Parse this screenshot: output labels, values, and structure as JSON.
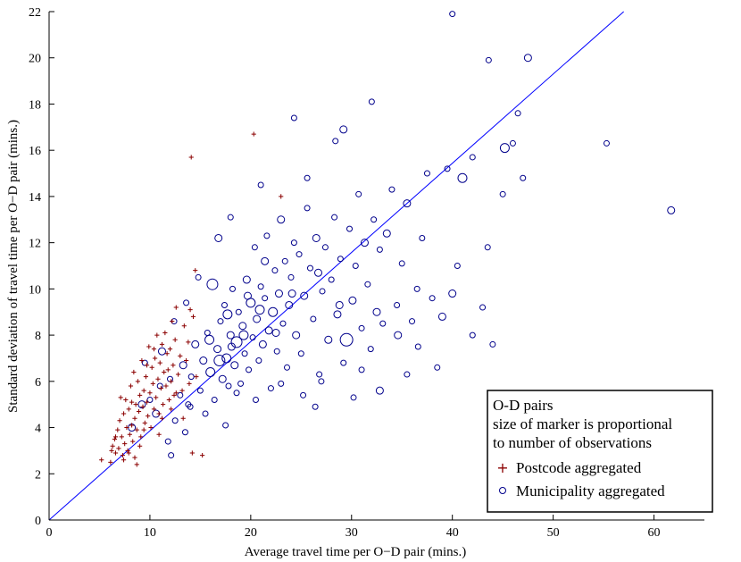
{
  "chart_data": {
    "type": "scatter",
    "title": "",
    "xlabel": "Average travel time per O−D pair (mins.)",
    "ylabel": "Standard deviation of travel time per O−D pair (mins.)",
    "xlim": [
      0,
      65
    ],
    "ylim": [
      0,
      22
    ],
    "xticks": [
      0,
      10,
      20,
      30,
      40,
      50,
      60
    ],
    "yticks": [
      0,
      2,
      4,
      6,
      8,
      10,
      12,
      14,
      16,
      18,
      20,
      22
    ],
    "grid": false,
    "legend": {
      "placement": "bottom-right",
      "lines": [
        "O-D pairs",
        "size of marker is proportional",
        "to number of observations"
      ],
      "entries": [
        {
          "label": "Postcode aggregated",
          "marker": "+",
          "color": "#8b0000"
        },
        {
          "label": "Municipality aggregated",
          "marker": "o",
          "color": "#00008b"
        }
      ]
    },
    "reference_line": {
      "x": [
        0,
        57
      ],
      "y": [
        0,
        22
      ],
      "color": "#0000ff"
    },
    "series": [
      {
        "name": "Postcode aggregated",
        "marker": "+",
        "color": "#8b0000",
        "points": [
          [
            5.2,
            2.6
          ],
          [
            6.1,
            2.5
          ],
          [
            6.3,
            3.2
          ],
          [
            6.5,
            3.5
          ],
          [
            6.6,
            2.9
          ],
          [
            6.8,
            3.9
          ],
          [
            6.9,
            3.1
          ],
          [
            7.0,
            4.3
          ],
          [
            7.1,
            5.3
          ],
          [
            7.2,
            3.6
          ],
          [
            7.3,
            2.8
          ],
          [
            7.4,
            4.6
          ],
          [
            7.5,
            3.3
          ],
          [
            7.6,
            5.2
          ],
          [
            7.7,
            4.0
          ],
          [
            7.8,
            3.0
          ],
          [
            7.9,
            4.8
          ],
          [
            8.0,
            3.7
          ],
          [
            8.1,
            5.8
          ],
          [
            8.2,
            4.1
          ],
          [
            8.3,
            3.4
          ],
          [
            8.4,
            6.4
          ],
          [
            8.5,
            4.4
          ],
          [
            8.6,
            5.0
          ],
          [
            8.7,
            3.9
          ],
          [
            8.8,
            6.0
          ],
          [
            8.9,
            4.7
          ],
          [
            9.0,
            5.4
          ],
          [
            9.1,
            3.6
          ],
          [
            9.2,
            6.9
          ],
          [
            9.3,
            4.9
          ],
          [
            9.4,
            5.6
          ],
          [
            9.5,
            4.2
          ],
          [
            9.6,
            6.2
          ],
          [
            9.7,
            5.1
          ],
          [
            9.8,
            4.5
          ],
          [
            9.9,
            7.5
          ],
          [
            10.0,
            5.5
          ],
          [
            10.1,
            4.0
          ],
          [
            10.2,
            6.6
          ],
          [
            10.3,
            5.9
          ],
          [
            10.4,
            4.8
          ],
          [
            10.5,
            7.0
          ],
          [
            10.6,
            5.3
          ],
          [
            10.7,
            8.0
          ],
          [
            10.8,
            6.1
          ],
          [
            10.9,
            4.6
          ],
          [
            11.0,
            6.8
          ],
          [
            11.1,
            5.7
          ],
          [
            11.2,
            7.6
          ],
          [
            11.3,
            5.0
          ],
          [
            11.4,
            6.4
          ],
          [
            11.5,
            8.1
          ],
          [
            11.6,
            5.8
          ],
          [
            11.7,
            7.2
          ],
          [
            11.8,
            6.5
          ],
          [
            11.9,
            5.2
          ],
          [
            12.0,
            7.4
          ],
          [
            12.1,
            6.0
          ],
          [
            12.2,
            8.6
          ],
          [
            12.3,
            6.7
          ],
          [
            12.4,
            5.4
          ],
          [
            12.5,
            7.8
          ],
          [
            12.6,
            9.2
          ],
          [
            12.8,
            6.3
          ],
          [
            13.0,
            7.1
          ],
          [
            13.2,
            5.6
          ],
          [
            13.4,
            8.4
          ],
          [
            13.6,
            6.9
          ],
          [
            13.8,
            7.7
          ],
          [
            14.0,
            9.1
          ],
          [
            14.1,
            15.7
          ],
          [
            14.3,
            8.8
          ],
          [
            14.5,
            10.8
          ],
          [
            15.2,
            2.8
          ],
          [
            14.2,
            2.9
          ],
          [
            20.3,
            16.7
          ],
          [
            23.0,
            14.0
          ],
          [
            8.5,
            2.7
          ],
          [
            9.0,
            3.2
          ],
          [
            7.4,
            2.6
          ],
          [
            8.2,
            5.1
          ],
          [
            9.7,
            6.7
          ],
          [
            10.4,
            7.4
          ],
          [
            11.2,
            4.4
          ],
          [
            12.1,
            4.8
          ],
          [
            13.3,
            4.4
          ],
          [
            6.6,
            3.6
          ],
          [
            7.9,
            2.9
          ],
          [
            9.4,
            3.9
          ],
          [
            10.9,
            3.7
          ],
          [
            12.6,
            5.5
          ],
          [
            13.9,
            5.9
          ],
          [
            14.6,
            6.2
          ],
          [
            8.7,
            2.4
          ],
          [
            6.2,
            3.0
          ]
        ]
      },
      {
        "name": "Municipality aggregated",
        "marker": "o",
        "color": "#00008b",
        "points": [
          [
            8.2,
            4.0,
            4
          ],
          [
            9.2,
            5.0,
            4
          ],
          [
            9.5,
            6.8,
            3
          ],
          [
            10.0,
            5.2,
            3
          ],
          [
            10.6,
            4.6,
            4
          ],
          [
            11.0,
            5.8,
            3
          ],
          [
            11.2,
            7.3,
            4
          ],
          [
            12.0,
            6.1,
            3
          ],
          [
            12.5,
            4.3,
            3
          ],
          [
            13.0,
            5.4,
            3
          ],
          [
            13.3,
            6.7,
            4
          ],
          [
            13.8,
            5.0,
            3
          ],
          [
            14.1,
            6.2,
            3
          ],
          [
            14.5,
            7.6,
            4
          ],
          [
            15.0,
            5.6,
            3
          ],
          [
            15.3,
            6.9,
            4
          ],
          [
            15.7,
            8.1,
            3
          ],
          [
            16.0,
            6.4,
            5
          ],
          [
            16.2,
            10.2,
            6
          ],
          [
            16.4,
            5.2,
            3
          ],
          [
            16.7,
            7.4,
            4
          ],
          [
            17.0,
            8.6,
            3
          ],
          [
            17.2,
            6.1,
            4
          ],
          [
            17.4,
            9.3,
            3
          ],
          [
            17.6,
            7.0,
            5
          ],
          [
            17.8,
            5.8,
            3
          ],
          [
            18.0,
            8.0,
            4
          ],
          [
            18.2,
            10.0,
            3
          ],
          [
            18.4,
            6.7,
            4
          ],
          [
            18.6,
            7.7,
            6
          ],
          [
            18.8,
            9.0,
            3
          ],
          [
            19.0,
            5.9,
            3
          ],
          [
            19.2,
            8.4,
            4
          ],
          [
            19.4,
            7.2,
            3
          ],
          [
            19.6,
            10.4,
            4
          ],
          [
            19.8,
            6.5,
            3
          ],
          [
            20.0,
            9.4,
            5
          ],
          [
            20.2,
            7.9,
            3
          ],
          [
            20.4,
            11.8,
            3
          ],
          [
            20.6,
            8.7,
            4
          ],
          [
            20.8,
            6.9,
            3
          ],
          [
            21.0,
            10.1,
            3
          ],
          [
            21.2,
            7.6,
            4
          ],
          [
            21.4,
            9.6,
            3
          ],
          [
            21.6,
            12.3,
            3
          ],
          [
            21.8,
            8.2,
            4
          ],
          [
            22.0,
            5.7,
            3
          ],
          [
            22.2,
            9.0,
            5
          ],
          [
            22.4,
            10.8,
            3
          ],
          [
            22.6,
            7.3,
            3
          ],
          [
            22.8,
            9.8,
            4
          ],
          [
            23.0,
            13.0,
            4
          ],
          [
            23.2,
            8.5,
            3
          ],
          [
            23.4,
            11.2,
            3
          ],
          [
            23.6,
            6.6,
            3
          ],
          [
            23.8,
            9.3,
            4
          ],
          [
            24.0,
            10.5,
            3
          ],
          [
            24.3,
            12.0,
            3
          ],
          [
            24.5,
            8.0,
            4
          ],
          [
            24.8,
            11.5,
            3
          ],
          [
            25.0,
            7.2,
            3
          ],
          [
            25.3,
            9.7,
            4
          ],
          [
            25.6,
            13.5,
            3
          ],
          [
            25.9,
            10.9,
            3
          ],
          [
            26.2,
            8.7,
            3
          ],
          [
            26.5,
            12.2,
            4
          ],
          [
            26.8,
            6.3,
            3
          ],
          [
            27.1,
            9.9,
            3
          ],
          [
            27.4,
            11.8,
            3
          ],
          [
            27.7,
            7.8,
            4
          ],
          [
            28.0,
            10.4,
            3
          ],
          [
            28.3,
            13.1,
            3
          ],
          [
            28.6,
            8.9,
            4
          ],
          [
            28.9,
            11.3,
            3
          ],
          [
            29.2,
            6.8,
            3
          ],
          [
            29.5,
            7.8,
            7
          ],
          [
            29.8,
            12.6,
            3
          ],
          [
            30.1,
            9.5,
            4
          ],
          [
            30.4,
            11.0,
            3
          ],
          [
            30.7,
            14.1,
            3
          ],
          [
            31.0,
            8.3,
            3
          ],
          [
            31.3,
            12.0,
            4
          ],
          [
            31.6,
            10.2,
            3
          ],
          [
            31.9,
            7.4,
            3
          ],
          [
            32.2,
            13.0,
            3
          ],
          [
            32.5,
            9.0,
            4
          ],
          [
            32.8,
            11.7,
            3
          ],
          [
            33.1,
            8.5,
            3
          ],
          [
            33.5,
            12.4,
            4
          ],
          [
            34.0,
            14.3,
            3
          ],
          [
            34.5,
            9.3,
            3
          ],
          [
            35.0,
            11.1,
            3
          ],
          [
            35.5,
            13.7,
            4
          ],
          [
            36.0,
            8.6,
            3
          ],
          [
            36.5,
            10.0,
            3
          ],
          [
            37.0,
            12.2,
            3
          ],
          [
            37.5,
            15.0,
            3
          ],
          [
            38.0,
            9.6,
            3
          ],
          [
            39.0,
            8.8,
            4
          ],
          [
            39.5,
            15.2,
            3
          ],
          [
            40.0,
            9.8,
            4
          ],
          [
            40.5,
            11.0,
            3
          ],
          [
            41.0,
            14.8,
            5
          ],
          [
            42.0,
            15.7,
            3
          ],
          [
            43.0,
            9.2,
            3
          ],
          [
            43.5,
            11.8,
            3
          ],
          [
            45.0,
            14.1,
            3
          ],
          [
            45.2,
            16.1,
            5
          ],
          [
            46.0,
            16.3,
            3
          ],
          [
            46.5,
            17.6,
            3
          ],
          [
            47.0,
            14.8,
            3
          ],
          [
            47.5,
            20.0,
            4
          ],
          [
            43.6,
            19.9,
            3
          ],
          [
            40.0,
            21.9,
            3
          ],
          [
            55.3,
            16.3,
            3
          ],
          [
            61.7,
            13.4,
            4
          ],
          [
            24.3,
            17.4,
            3
          ],
          [
            32.0,
            18.1,
            3
          ],
          [
            28.4,
            16.4,
            3
          ],
          [
            29.2,
            16.9,
            4
          ],
          [
            25.6,
            14.8,
            3
          ],
          [
            21.0,
            14.5,
            3
          ],
          [
            18.0,
            13.1,
            3
          ],
          [
            16.8,
            12.2,
            4
          ],
          [
            14.8,
            10.5,
            3
          ],
          [
            13.6,
            9.4,
            3
          ],
          [
            12.4,
            8.6,
            3
          ],
          [
            11.8,
            3.4,
            3
          ],
          [
            12.1,
            2.8,
            3
          ],
          [
            13.5,
            3.8,
            3
          ],
          [
            17.5,
            4.1,
            3
          ],
          [
            26.4,
            4.9,
            3
          ],
          [
            25.2,
            5.4,
            3
          ],
          [
            30.2,
            5.3,
            3
          ],
          [
            32.8,
            5.6,
            4
          ],
          [
            35.5,
            6.3,
            3
          ],
          [
            38.5,
            6.6,
            3
          ],
          [
            42.0,
            8.0,
            3
          ],
          [
            44.0,
            7.6,
            3
          ],
          [
            36.6,
            7.5,
            3
          ],
          [
            34.6,
            8.0,
            4
          ],
          [
            31.0,
            6.5,
            3
          ],
          [
            27.0,
            6.0,
            3
          ],
          [
            23.0,
            5.9,
            3
          ],
          [
            20.5,
            5.2,
            3
          ],
          [
            18.6,
            5.5,
            3
          ],
          [
            15.5,
            4.6,
            3
          ],
          [
            14.0,
            4.9,
            3
          ],
          [
            16.9,
            6.9,
            6
          ],
          [
            17.7,
            8.9,
            5
          ],
          [
            19.3,
            8.0,
            5
          ],
          [
            20.9,
            9.1,
            5
          ],
          [
            15.9,
            7.8,
            5
          ],
          [
            18.1,
            7.5,
            4
          ],
          [
            19.7,
            9.7,
            4
          ],
          [
            22.5,
            8.1,
            4
          ],
          [
            21.4,
            11.2,
            4
          ],
          [
            24.1,
            9.8,
            4
          ],
          [
            26.7,
            10.7,
            4
          ],
          [
            28.8,
            9.3,
            4
          ]
        ]
      }
    ]
  }
}
